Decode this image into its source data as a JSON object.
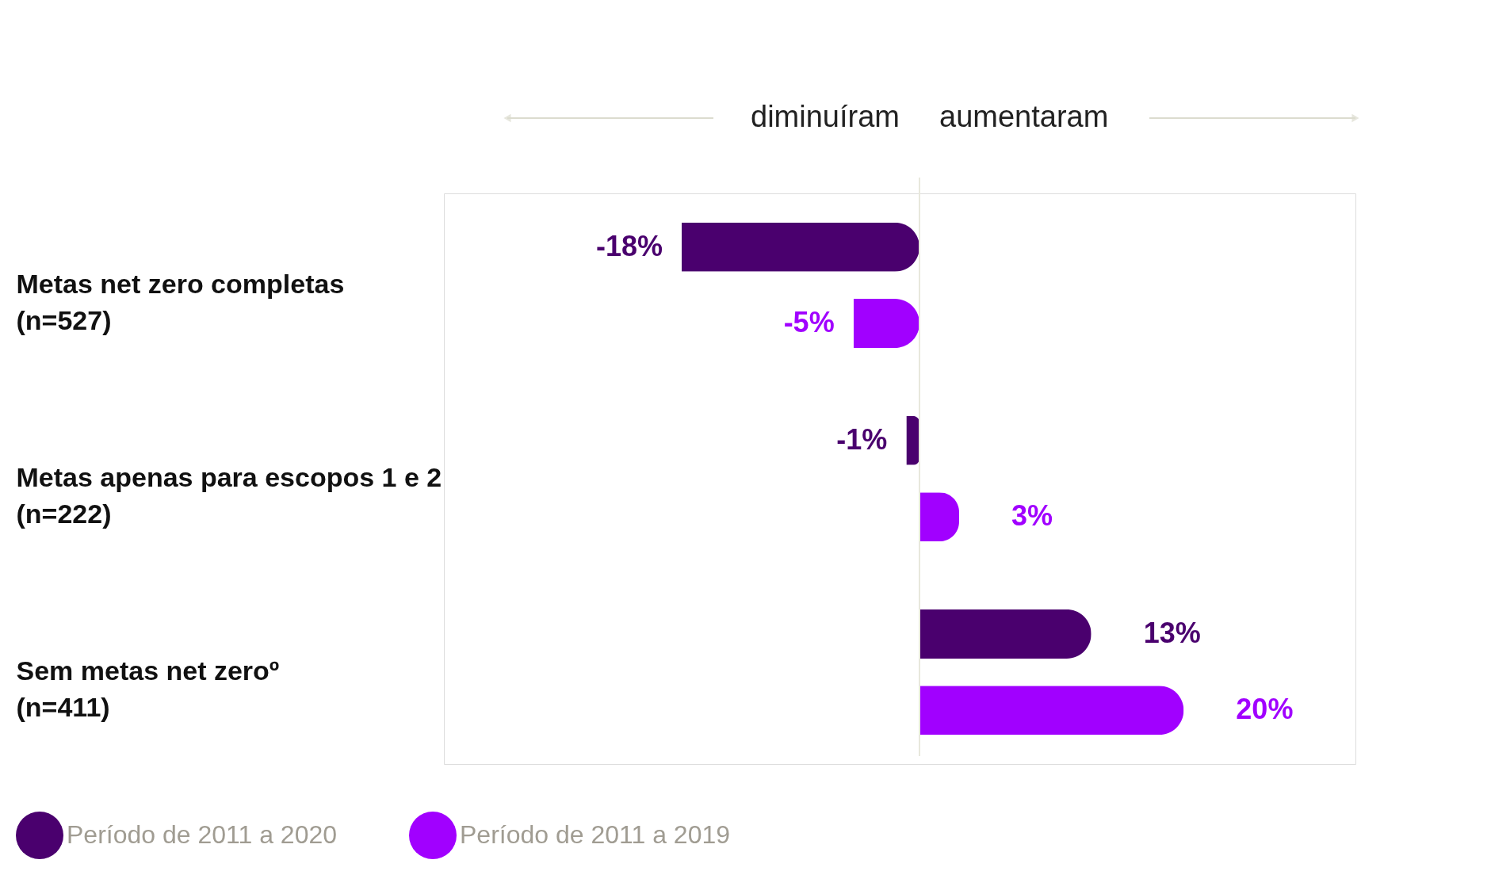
{
  "chart_data": {
    "type": "bar",
    "orientation": "horizontal",
    "categories": [
      "Metas net zero completas\n(n=527)",
      "Metas apenas para escopos 1 e 2\n(n=222)",
      "Sem metas net zeroº\n(n=411)"
    ],
    "series": [
      {
        "name": "Período de 2011 a 2020",
        "color": "#4a006e",
        "values": [
          -18,
          -1,
          13
        ],
        "value_labels": [
          "-18%",
          "-1%",
          "13%"
        ]
      },
      {
        "name": "Período de 2011 a 2019",
        "color": "#a100ff",
        "values": [
          -5,
          3,
          20
        ],
        "value_labels": [
          "-5%",
          "3%",
          "20%"
        ]
      }
    ],
    "annotations": [
      "diminuíram",
      "aumentaram"
    ],
    "legend": "bottom left"
  }
}
